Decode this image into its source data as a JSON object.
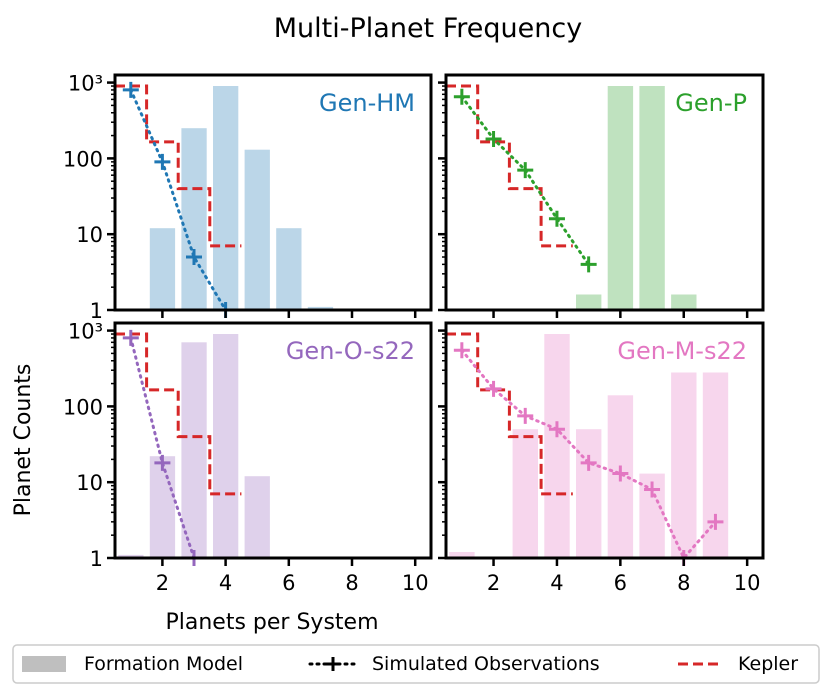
{
  "title": "Multi-Planet Frequency",
  "xlabel": "Planets per System",
  "ylabel": "Planet Counts",
  "xlim": [
    0.5,
    10.5
  ],
  "ylim_log10": [
    0,
    3.1
  ],
  "xticks": [
    2,
    4,
    6,
    8,
    10
  ],
  "yticks": [
    {
      "label": "1",
      "value": 1
    },
    {
      "label": "10",
      "value": 10
    },
    {
      "label": "100",
      "value": 100
    },
    {
      "label": "10³",
      "value": 1000
    }
  ],
  "legend": {
    "placement": "bottom",
    "items": [
      {
        "label": "Formation Model",
        "style": "bar"
      },
      {
        "label": "Simulated Observations",
        "style": "dotted-plus"
      },
      {
        "label": "Kepler",
        "style": "dashed"
      }
    ]
  },
  "colors": {
    "Gen-HM": "#1f77b4",
    "Gen-P": "#2ca02c",
    "Gen-O-s22": "#9467bd",
    "Gen-M-s22": "#e377c2",
    "kepler": "#d62728",
    "legend_bar": "#bfbfbf"
  },
  "kepler": {
    "name": "Kepler",
    "multiplicity": [
      1,
      2,
      3,
      4
    ],
    "values": [
      900,
      165,
      40,
      7
    ]
  },
  "chart_data": [
    {
      "type": "bar",
      "name": "Gen-HM",
      "panel": "top-left",
      "formation_model": {
        "x": [
          2,
          3,
          4,
          5,
          6,
          7
        ],
        "values": [
          12,
          250,
          900,
          130,
          12,
          1.1
        ]
      },
      "simulated_observations": {
        "x": [
          1,
          2,
          3,
          4
        ],
        "values": [
          800,
          90,
          5,
          1
        ]
      }
    },
    {
      "type": "bar",
      "name": "Gen-P",
      "panel": "top-right",
      "formation_model": {
        "x": [
          5,
          6,
          7,
          8
        ],
        "values": [
          1.6,
          900,
          900,
          1.6
        ]
      },
      "simulated_observations": {
        "x": [
          1,
          2,
          3,
          4,
          5
        ],
        "values": [
          650,
          180,
          70,
          16,
          4
        ]
      }
    },
    {
      "type": "bar",
      "name": "Gen-O-s22",
      "panel": "bottom-left",
      "formation_model": {
        "x": [
          1,
          2,
          3,
          4,
          5
        ],
        "values": [
          1.1,
          22,
          700,
          900,
          12
        ]
      },
      "simulated_observations": {
        "x": [
          1,
          2,
          3
        ],
        "values": [
          800,
          18,
          1
        ]
      }
    },
    {
      "type": "bar",
      "name": "Gen-M-s22",
      "panel": "bottom-right",
      "formation_model": {
        "x": [
          1,
          3,
          4,
          5,
          6,
          7,
          8,
          9
        ],
        "values": [
          1.2,
          50,
          900,
          50,
          140,
          13,
          280,
          280
        ]
      },
      "simulated_observations": {
        "x": [
          1,
          2,
          3,
          4,
          5,
          6,
          7,
          8,
          9
        ],
        "values": [
          550,
          170,
          75,
          50,
          18,
          13,
          8,
          1,
          3
        ]
      }
    }
  ]
}
